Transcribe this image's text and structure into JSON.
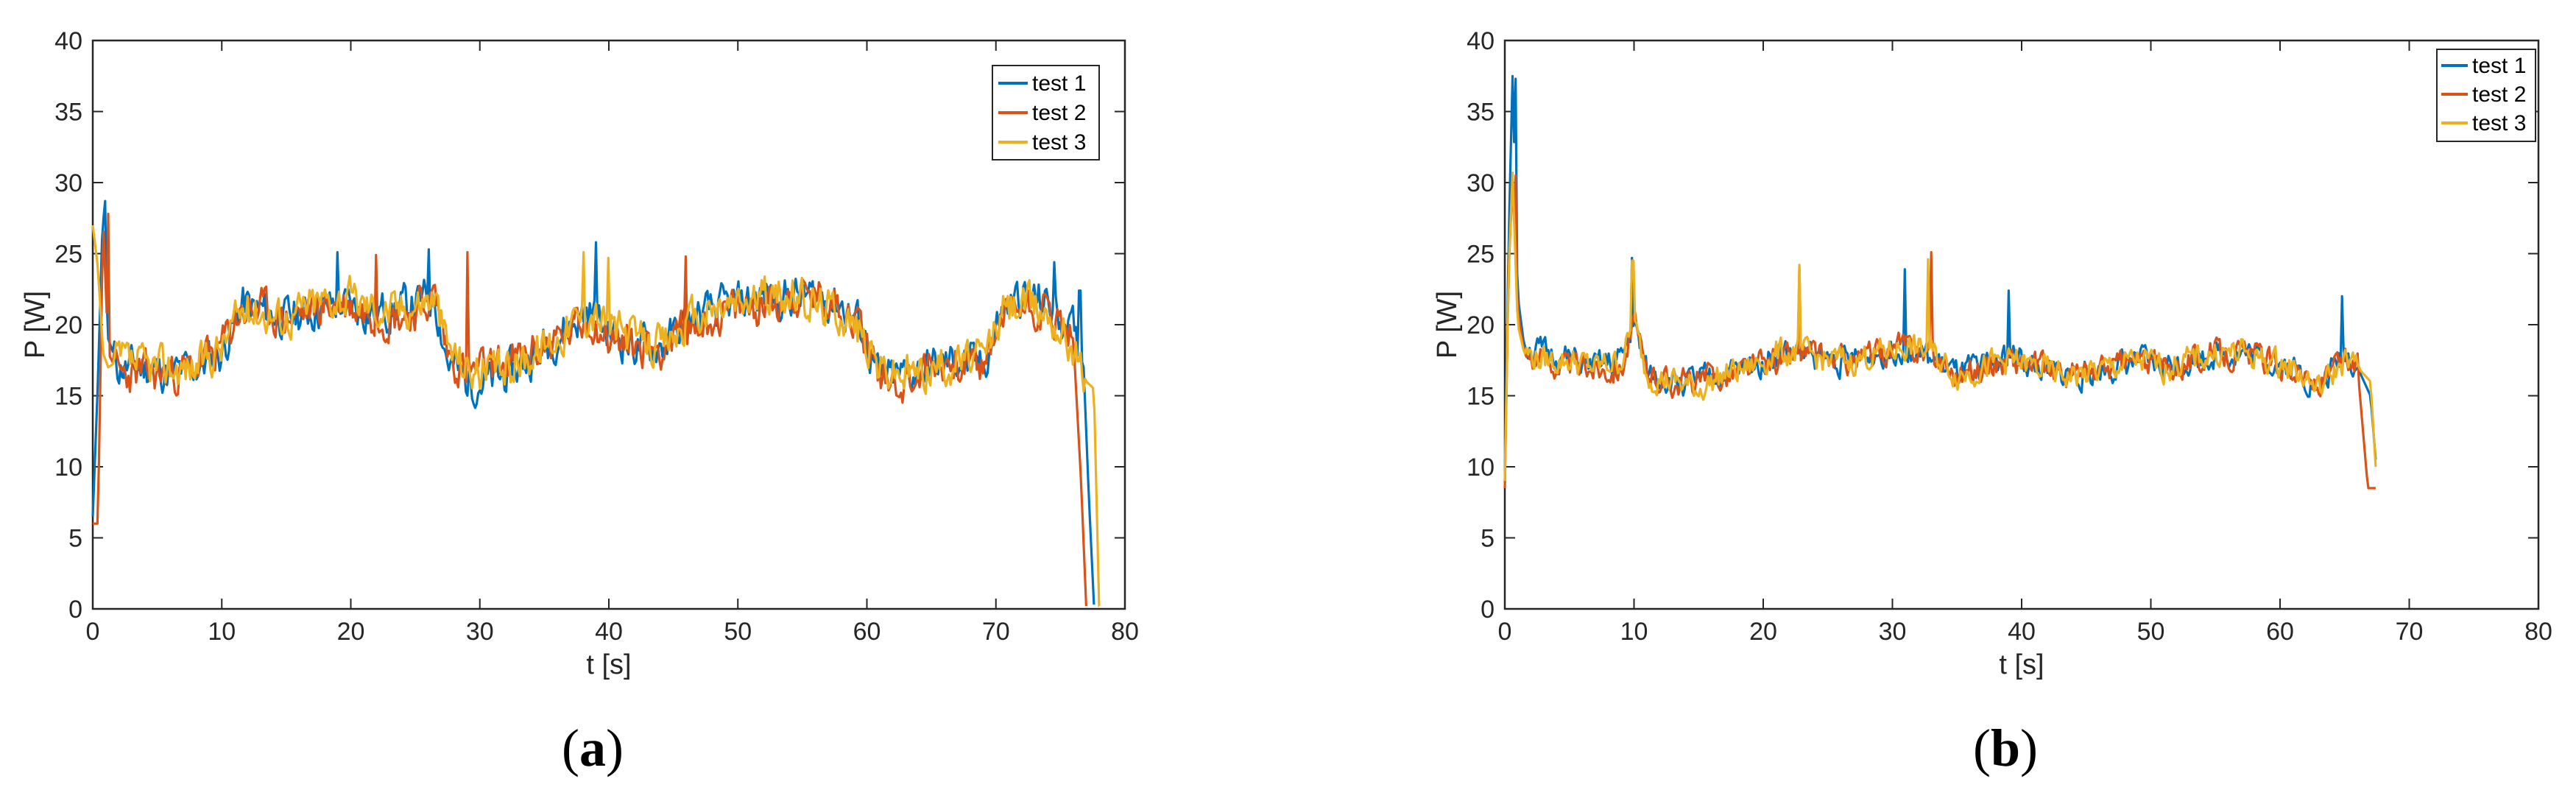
{
  "chart_data": [
    {
      "type": "line",
      "caption": "a",
      "xlabel": "t [s]",
      "ylabel": "P [W]",
      "xlim": [
        0,
        80
      ],
      "ylim": [
        0,
        40
      ],
      "xticks": [
        0,
        10,
        20,
        30,
        40,
        50,
        60,
        70,
        80
      ],
      "yticks": [
        0,
        5,
        10,
        15,
        20,
        25,
        30,
        35,
        40
      ],
      "legend_position": "top-right",
      "series": [
        {
          "name": "test 1",
          "color": "#0072BD",
          "seed": 11,
          "noise": 1.9,
          "x": [
            0,
            0.4,
            0.8,
            1.2,
            2,
            4,
            6,
            8,
            10,
            11.5,
            13,
            15,
            17,
            19,
            21,
            23,
            25,
            26.5,
            27.5,
            29,
            31,
            33,
            35,
            37,
            38.5,
            40,
            42,
            44,
            46,
            48,
            50,
            52,
            54,
            56,
            58,
            59.5,
            61,
            63,
            65,
            67,
            69,
            70.5,
            72,
            74,
            76,
            76.8,
            77.2,
            77.6
          ],
          "y": [
            6.5,
            16,
            28.5,
            19,
            17,
            17,
            16.5,
            17,
            18,
            21.5,
            21,
            20.5,
            21,
            21.5,
            21,
            21,
            21.5,
            22,
            17.5,
            16,
            16,
            17,
            18.5,
            20,
            21,
            19.5,
            18.5,
            18.5,
            20,
            21,
            21.5,
            22,
            22,
            22,
            21.5,
            20,
            16,
            16.5,
            17,
            17.5,
            17,
            21,
            22,
            21.5,
            19.5,
            17,
            8,
            0.3
          ],
          "spikes": [
            [
              1,
              28.7
            ],
            [
              26,
              25.3
            ],
            [
              39,
              25.8
            ],
            [
              19,
              25.1
            ],
            [
              74.5,
              24.4
            ],
            [
              76.5,
              22.4
            ]
          ]
        },
        {
          "name": "test 2",
          "color": "#D95319",
          "seed": 23,
          "noise": 1.9,
          "x": [
            0,
            0.4,
            0.8,
            1.2,
            2,
            4,
            6,
            8,
            10,
            11.5,
            13,
            15,
            17,
            19,
            21,
            23,
            25,
            26.5,
            27.5,
            29,
            31,
            33,
            35,
            37,
            38.5,
            40,
            42,
            44,
            46,
            48,
            50,
            52,
            54,
            56,
            58,
            59.5,
            61,
            63,
            65,
            67,
            69,
            70.5,
            72,
            74,
            76,
            76.6,
            77
          ],
          "y": [
            6,
            6,
            27.5,
            18,
            16.5,
            16.5,
            16.5,
            17,
            18.5,
            21,
            21,
            20.5,
            21,
            21.5,
            21,
            20.5,
            21,
            22,
            18,
            16.5,
            17,
            17.5,
            18.5,
            19.5,
            20.5,
            19,
            18.5,
            18.5,
            19.5,
            20.5,
            21,
            21.5,
            22,
            22,
            21.5,
            20,
            16.5,
            16,
            17,
            17.5,
            17,
            20.5,
            21.5,
            21,
            19,
            9,
            0.2
          ],
          "spikes": [
            [
              1.2,
              27.8
            ],
            [
              29,
              25.1
            ],
            [
              46,
              24.8
            ],
            [
              22,
              24.9
            ]
          ]
        },
        {
          "name": "test 3",
          "color": "#EDB120",
          "seed": 37,
          "noise": 1.9,
          "x": [
            0,
            0.4,
            0.8,
            1.2,
            2,
            4,
            6,
            8,
            10,
            11.5,
            13,
            15,
            17,
            19,
            21,
            23,
            25,
            26.5,
            27.5,
            29,
            31,
            33,
            35,
            37,
            38.5,
            40,
            42,
            44,
            46,
            48,
            50,
            52,
            54,
            56,
            58,
            59.5,
            61,
            63,
            65,
            67,
            69,
            70.5,
            72,
            74,
            76,
            77,
            77.6,
            78
          ],
          "y": [
            27,
            24,
            18,
            17,
            17.5,
            17,
            17,
            17,
            18.5,
            21,
            21,
            20.5,
            21.5,
            22,
            21.5,
            21,
            21.5,
            22,
            18.5,
            17,
            16.5,
            17.5,
            18.5,
            20,
            21,
            20,
            19,
            18.5,
            20,
            21,
            21.5,
            22,
            22,
            21.5,
            21,
            19.5,
            17,
            16.5,
            17,
            17.5,
            17.5,
            21,
            21.5,
            21,
            18.5,
            16,
            15.5,
            0.2
          ],
          "spikes": [
            [
              38,
              25.1
            ],
            [
              40,
              24.7
            ]
          ]
        }
      ]
    },
    {
      "type": "line",
      "caption": "b",
      "xlabel": "t [s]",
      "ylabel": "P [W]",
      "xlim": [
        0,
        80
      ],
      "ylim": [
        0,
        40
      ],
      "xticks": [
        0,
        10,
        20,
        30,
        40,
        50,
        60,
        70,
        80
      ],
      "yticks": [
        0,
        5,
        10,
        15,
        20,
        25,
        30,
        35,
        40
      ],
      "legend_position": "top-right",
      "series": [
        {
          "name": "test 1",
          "color": "#0072BD",
          "seed": 51,
          "noise": 1.3,
          "x": [
            0,
            0.3,
            0.6,
            1,
            1.5,
            3,
            5,
            7,
            9,
            10,
            11,
            13,
            15,
            17,
            19,
            21,
            23,
            25,
            27,
            29,
            31,
            33,
            35,
            37,
            39,
            41,
            43,
            45,
            47,
            49,
            51,
            53,
            55,
            57,
            59,
            61,
            63,
            65,
            66,
            67,
            67.4
          ],
          "y": [
            9,
            26,
            37.5,
            22,
            18.5,
            18,
            17.5,
            17,
            17.5,
            20,
            16.5,
            16,
            16,
            16.5,
            17,
            18,
            18,
            17.5,
            17.5,
            18,
            18.5,
            17.5,
            16.5,
            17,
            18,
            17,
            16.5,
            16.5,
            17,
            17.5,
            17,
            17.5,
            18,
            18,
            17.5,
            17,
            15.5,
            18,
            17,
            15,
            10.5
          ],
          "spikes": [
            [
              0.8,
              37.3
            ],
            [
              9.8,
              24.7
            ],
            [
              31,
              23.9
            ],
            [
              39,
              22.4
            ],
            [
              64.8,
              22
            ]
          ]
        },
        {
          "name": "test 2",
          "color": "#D95319",
          "seed": 63,
          "noise": 1.3,
          "x": [
            0,
            0.3,
            0.6,
            1,
            1.5,
            3,
            5,
            7,
            9,
            10,
            11,
            13,
            15,
            17,
            19,
            21,
            23,
            25,
            27,
            29,
            31,
            33,
            35,
            37,
            39,
            41,
            43,
            45,
            47,
            49,
            51,
            53,
            55,
            57,
            59,
            61,
            63,
            65,
            66,
            66.8,
            67.4
          ],
          "y": [
            8.5,
            24,
            30,
            21,
            18,
            17.5,
            17,
            17,
            17,
            20,
            16.5,
            16,
            16,
            16.5,
            17,
            17.5,
            18,
            17.5,
            17.5,
            18,
            18.5,
            18,
            16.5,
            17,
            17.5,
            17,
            16.5,
            16.5,
            17,
            17.5,
            17,
            17.5,
            18,
            18,
            17.5,
            17,
            15.5,
            17.5,
            17,
            8.5,
            8.5
          ],
          "spikes": [
            [
              0.8,
              30.5
            ],
            [
              33,
              25.1
            ],
            [
              22.8,
              24.1
            ]
          ]
        },
        {
          "name": "test 3",
          "color": "#EDB120",
          "seed": 79,
          "noise": 1.3,
          "x": [
            0,
            0.3,
            0.6,
            1,
            1.5,
            3,
            5,
            7,
            9,
            10,
            11,
            13,
            15,
            17,
            19,
            21,
            23,
            25,
            27,
            29,
            31,
            33,
            35,
            37,
            39,
            41,
            43,
            45,
            47,
            49,
            51,
            53,
            55,
            57,
            59,
            61,
            63,
            65,
            66,
            67,
            67.4
          ],
          "y": [
            9,
            24,
            30.5,
            20,
            18,
            17.5,
            17.5,
            17,
            17.5,
            20,
            16.5,
            16,
            15.5,
            16.5,
            17,
            18,
            18,
            17.5,
            17.5,
            18,
            18.5,
            18,
            16.5,
            17,
            17.5,
            17,
            16.5,
            16.5,
            17,
            17.5,
            17,
            17.5,
            18,
            18,
            17.5,
            17,
            15.5,
            17.5,
            17,
            16,
            10
          ],
          "spikes": [
            [
              0.6,
              30.7
            ],
            [
              9.9,
              24.5
            ],
            [
              22.8,
              24.2
            ],
            [
              32.8,
              24.6
            ]
          ]
        }
      ]
    }
  ]
}
